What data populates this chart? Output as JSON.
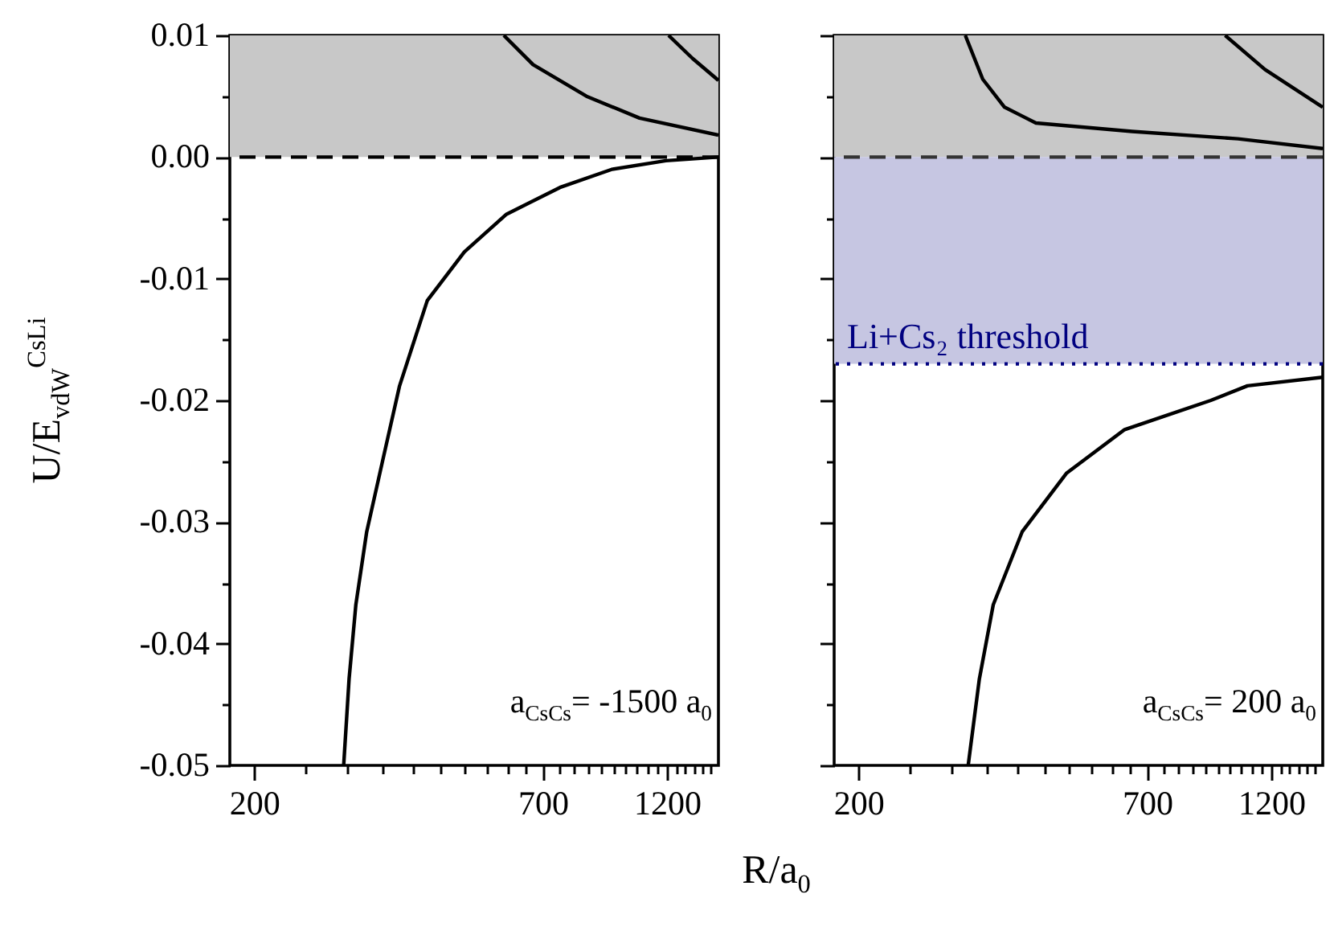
{
  "chart_data": [
    {
      "type": "line",
      "ylabel": "U/E$_{vdW}$$^{CsLi}$",
      "xlabel": "R/a$_{0}$",
      "log": "x",
      "xlim": [
        180,
        1500
      ],
      "ylim": [
        -0.05,
        0.01
      ],
      "xticks": [
        200,
        {
          "value": 250,
          "label": null
        },
        {
          "value": 300,
          "label": null
        },
        {
          "value": 350,
          "label": null
        },
        {
          "value": 400,
          "label": null
        },
        {
          "value": 450,
          "label": null
        },
        {
          "value": 500,
          "label": null
        },
        {
          "value": 550,
          "label": null
        },
        {
          "value": 600,
          "label": null
        },
        {
          "value": 650,
          "label": null
        },
        700,
        {
          "value": 750,
          "label": null
        },
        {
          "value": 800,
          "label": null
        },
        {
          "value": 850,
          "label": null
        },
        {
          "value": 900,
          "label": null
        },
        {
          "value": 950,
          "label": null
        },
        {
          "value": 1000,
          "label": null
        },
        {
          "value": 1050,
          "label": null
        },
        {
          "value": 1100,
          "label": null
        },
        {
          "value": 1150,
          "label": null
        },
        1200,
        {
          "value": 1250,
          "label": null
        },
        {
          "value": 1300,
          "label": null
        },
        {
          "value": 1350,
          "label": null
        },
        {
          "value": 1400,
          "label": null
        },
        {
          "value": 1450,
          "label": null
        }
      ],
      "yticks": [
        -0.05,
        {
          "value": -0.045,
          "label": null
        },
        -0.04,
        {
          "value": -0.035,
          "label": null
        },
        -0.03,
        {
          "value": -0.025,
          "label": null
        },
        -0.02,
        {
          "value": -0.015,
          "label": null
        },
        -0.01,
        {
          "value": -0.005,
          "label": null
        },
        {
          "value": 0,
          "label": "0.00"
        },
        {
          "value": 0.005,
          "label": null
        },
        0.01
      ],
      "marker": "none",
      "bands": [
        {
          "axis": "y",
          "from": 0,
          "to": 0.01,
          "color": "#c8c8c8"
        }
      ],
      "ref_lines": [
        {
          "axis": "y",
          "value": 0,
          "line_style": "dashed",
          "color": "#000000"
        }
      ],
      "annotations": [
        "a$_{CsCs}$= -1500 a$_{0}$"
      ],
      "series": [
        {
          "color": "#000000",
          "x": [
            295,
            302,
            311,
            326,
            350,
            376,
            424,
            498,
            598,
            754,
            946,
            1194,
            1500
          ],
          "values": [
            -0.05,
            -0.0429,
            -0.0368,
            -0.0308,
            -0.0248,
            -0.0188,
            -0.0118,
            -0.0078,
            -0.0047,
            -0.0025,
            -0.001,
            -0.0003,
            0
          ]
        },
        {
          "color": "#000000",
          "x": [
            591,
            671,
            846,
            1065,
            1500
          ],
          "values": [
            0.01,
            0.0076,
            0.005,
            0.0032,
            0.0018
          ]
        },
        {
          "color": "#000000",
          "x": [
            1208,
            1341,
            1500
          ],
          "values": [
            0.01,
            0.0081,
            0.0063
          ]
        }
      ]
    },
    {
      "type": "line",
      "log": "x",
      "xlim": [
        180,
        1500
      ],
      "ylim": [
        -0.05,
        0.01
      ],
      "tick_labels": "x",
      "xticks": [
        200,
        {
          "value": 250,
          "label": null
        },
        {
          "value": 300,
          "label": null
        },
        {
          "value": 350,
          "label": null
        },
        {
          "value": 400,
          "label": null
        },
        {
          "value": 450,
          "label": null
        },
        {
          "value": 500,
          "label": null
        },
        {
          "value": 550,
          "label": null
        },
        {
          "value": 600,
          "label": null
        },
        {
          "value": 650,
          "label": null
        },
        700,
        {
          "value": 750,
          "label": null
        },
        {
          "value": 800,
          "label": null
        },
        {
          "value": 850,
          "label": null
        },
        {
          "value": 900,
          "label": null
        },
        {
          "value": 950,
          "label": null
        },
        {
          "value": 1000,
          "label": null
        },
        {
          "value": 1050,
          "label": null
        },
        {
          "value": 1100,
          "label": null
        },
        {
          "value": 1150,
          "label": null
        },
        1200,
        {
          "value": 1250,
          "label": null
        },
        {
          "value": 1300,
          "label": null
        },
        {
          "value": 1350,
          "label": null
        },
        {
          "value": 1400,
          "label": null
        },
        {
          "value": 1450,
          "label": null
        }
      ],
      "yticks": [
        -0.05,
        {
          "value": -0.045,
          "label": null
        },
        -0.04,
        {
          "value": -0.035,
          "label": null
        },
        -0.03,
        {
          "value": -0.025,
          "label": null
        },
        -0.02,
        {
          "value": -0.015,
          "label": null
        },
        -0.01,
        {
          "value": -0.005,
          "label": null
        },
        0,
        {
          "value": 0.005,
          "label": null
        },
        0.01
      ],
      "marker": "none",
      "bands": [
        {
          "axis": "y",
          "from": 0,
          "to": 0.01,
          "color": "#c8c8c8"
        },
        {
          "axis": "y",
          "from": -0.017,
          "to": 0,
          "color": "#c6c6e2"
        }
      ],
      "ref_lines": [
        {
          "axis": "y",
          "value": 0,
          "line_style": "dashed",
          "color": "#333333"
        },
        {
          "axis": "y",
          "value": -0.017,
          "label": "Li+Cs₂ threshold",
          "line_style": "dotted",
          "color": "#000080"
        }
      ],
      "annotations": [
        "a$_{CsCs}$= 200 a$_{0}$"
      ],
      "series": [
        {
          "color": "#000000",
          "x": [
            322,
            338,
            359,
            407,
            493,
            635,
            923,
            1082,
            1500
          ],
          "values": [
            -0.05,
            -0.0429,
            -0.0368,
            -0.0308,
            -0.026,
            -0.0224,
            -0.02,
            -0.0188,
            -0.0181
          ]
        },
        {
          "color": "#000000",
          "x": [
            318,
            343,
            377,
            432,
            656,
            1038,
            1500
          ],
          "values": [
            0.01,
            0.0064,
            0.0041,
            0.0028,
            0.0021,
            0.0015,
            0.0007
          ]
        },
        {
          "color": "#000000",
          "x": [
            982,
            1167,
            1500
          ],
          "values": [
            0.01,
            0.0072,
            0.0041
          ]
        }
      ]
    }
  ]
}
